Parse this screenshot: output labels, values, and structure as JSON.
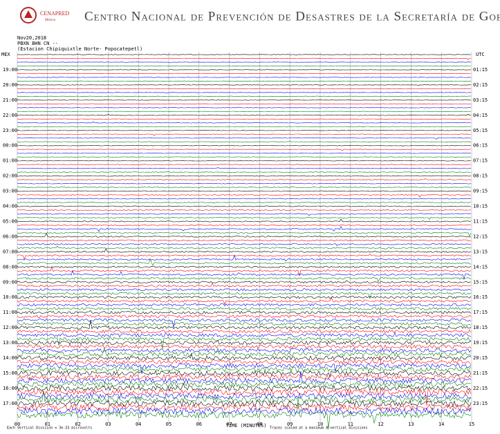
{
  "header": {
    "logo": "CENAPRED",
    "logo_sub": "México",
    "title": "Centro Nacional de Prevención de Desastres de la Secretaría de Gobernación"
  },
  "chart_data": {
    "type": "helicorder",
    "info": [
      "Nov20,2018",
      "PBXN BHN CN --",
      "(Estacion Chipiquixtle Norte- Popocatepetl)"
    ],
    "left_zone": "MEX",
    "right_zone": "UTC",
    "left_times": [
      "19:00",
      "20:00",
      "21:00",
      "22:00",
      "23:00",
      "00:00",
      "01:00",
      "02:00",
      "03:00",
      "04:00",
      "05:00",
      "06:00",
      "07:00",
      "08:00",
      "09:00",
      "10:00",
      "11:00",
      "12:00",
      "13:00",
      "14:00",
      "15:00",
      "16:00",
      "17:00"
    ],
    "right_times": [
      "01:15",
      "02:15",
      "03:15",
      "04:15",
      "05:15",
      "06:15",
      "07:15",
      "08:15",
      "09:15",
      "10:15",
      "11:15",
      "12:15",
      "13:15",
      "14:15",
      "15:15",
      "16:15",
      "17:15",
      "18:15",
      "19:15",
      "20:15",
      "21:15",
      "22:15",
      "23:15"
    ],
    "xlabel": "TIME (MINUTES)",
    "xlim": [
      0,
      15
    ],
    "xticks": [
      {
        "value": 0,
        "label": "00"
      },
      {
        "value": 1,
        "label": "01"
      },
      {
        "value": 2,
        "label": "02"
      },
      {
        "value": 3,
        "label": "03"
      },
      {
        "value": 4,
        "label": "04"
      },
      {
        "value": 5,
        "label": "05"
      },
      {
        "value": 6,
        "label": "06"
      },
      {
        "value": 7,
        "label": "07"
      },
      {
        "value": 8,
        "label": "08"
      },
      {
        "value": 9,
        "label": "09"
      },
      {
        "value": 10,
        "label": "10"
      },
      {
        "value": 11,
        "label": "11"
      },
      {
        "value": 12,
        "label": "12"
      },
      13,
      14,
      15
    ],
    "colors": [
      "#000000",
      "#ff0000",
      "#0000ff",
      "#008000"
    ],
    "footer_left": "Each Vertical Division = 3e-33 microvolts",
    "footer_right": "Traces scaled at a maximum 8 vertical divisions"
  }
}
